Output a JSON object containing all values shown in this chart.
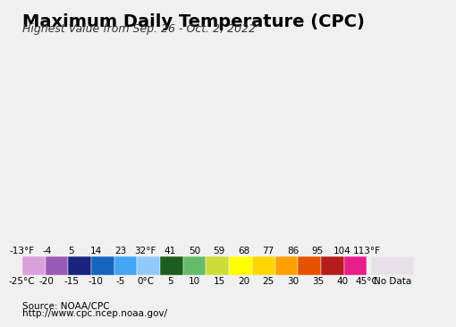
{
  "title": "Maximum Daily Temperature (CPC)",
  "subtitle": "Highest Value from Sep. 26 - Oct. 2, 2022",
  "source_line1": "Source: NOAA/CPC",
  "source_line2": "http://www.cpc.ncep.noaa.gov/",
  "fahrenheit_ticks": [
    "-13°F",
    "-4",
    "5",
    "14",
    "23",
    "32°F",
    "41",
    "50",
    "59",
    "68",
    "77",
    "86",
    "95",
    "104",
    "113°F"
  ],
  "celsius_ticks": [
    "-25°C",
    "-20",
    "-15",
    "-10",
    "-5",
    "0°C",
    "5",
    "10",
    "15",
    "20",
    "25",
    "30",
    "35",
    "40",
    "45°C"
  ],
  "colorbar_colors": [
    "#d9a0d9",
    "#9b59b6",
    "#1a237e",
    "#1565c0",
    "#42a5f5",
    "#90caf9",
    "#1b5e20",
    "#66bb6a",
    "#cddc39",
    "#ffff00",
    "#ffd600",
    "#ffa000",
    "#e65100",
    "#b71c1c",
    "#e91e8c",
    "#f8bbd0"
  ],
  "no_data_color": "#e8e0e8",
  "background_color": "#c8e8f0",
  "map_bg": "#f0f0f0",
  "title_fontsize": 14,
  "subtitle_fontsize": 9,
  "tick_fontsize": 7.5
}
